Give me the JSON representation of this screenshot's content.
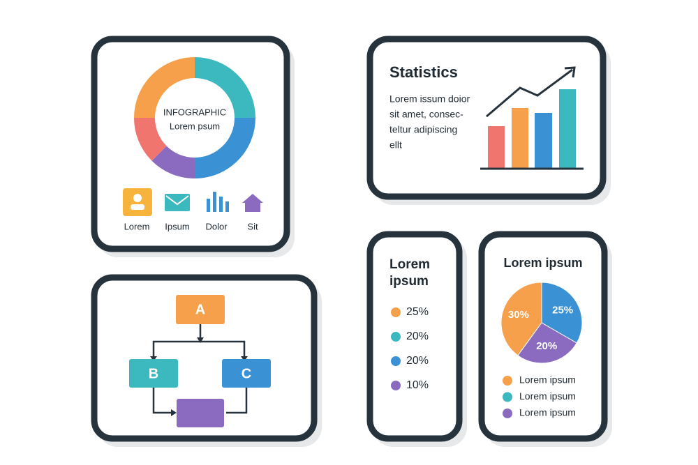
{
  "infographic_card": {
    "center_text": [
      "INFOGRAPHIC",
      "Lorem psum"
    ],
    "icons": [
      "Lorem",
      "Ipsum",
      "Dolor",
      "Sit"
    ]
  },
  "statistics_card": {
    "title": "Statistics",
    "text": [
      "Lorem issum doior",
      "sit amet, consec-",
      "teltur adipiscing",
      "ellt"
    ]
  },
  "flow_card": {
    "nodes": [
      "A",
      "B",
      "C"
    ]
  },
  "list_card": {
    "title": [
      "Lorem",
      "ipsum"
    ],
    "items": [
      {
        "label": "25%",
        "color": "#f6a04b"
      },
      {
        "label": "20%",
        "color": "#3cb8bf"
      },
      {
        "label": "20%",
        "color": "#3a92d5"
      },
      {
        "label": "10%",
        "color": "#8a6bbf"
      }
    ]
  },
  "pie_card": {
    "title": "Lorem ipsum",
    "slices": {
      "values": [
        30,
        25,
        20
      ],
      "value_labels": [
        "30%",
        "25%",
        "20%"
      ],
      "colors": [
        "#f6a04b",
        "#3a92d5",
        "#8a6bbf"
      ]
    },
    "legend": [
      {
        "label": "Lorem ipsum",
        "color": "#f6a04b"
      },
      {
        "label": "Lorem ipsum",
        "color": "#3cb8bf"
      },
      {
        "label": "Lorem ipsum",
        "color": "#8a6bbf"
      }
    ]
  }
}
